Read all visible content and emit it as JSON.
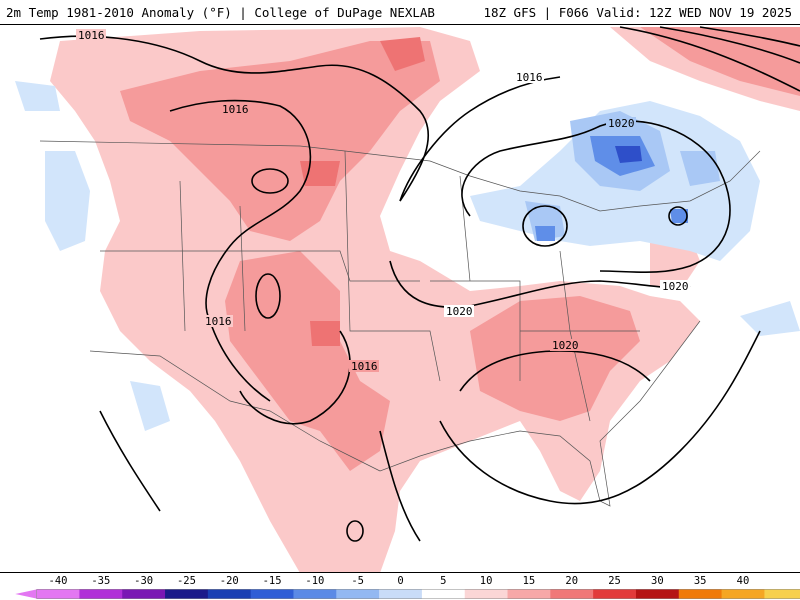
{
  "header": {
    "title_left": "2m Temp 1981-2010 Anomaly (°F) | College of DuPage NEXLAB",
    "title_right": "18Z GFS | F066 Valid: 12Z WED NOV 19 2025"
  },
  "map": {
    "isobar_labels": [
      {
        "id": "l1",
        "text": "1016"
      },
      {
        "id": "l2",
        "text": "1016"
      },
      {
        "id": "l3",
        "text": "1016"
      },
      {
        "id": "l4",
        "text": "1020"
      },
      {
        "id": "l5",
        "text": "1016"
      },
      {
        "id": "l6",
        "text": "1020"
      },
      {
        "id": "l7",
        "text": "1016"
      },
      {
        "id": "l8",
        "text": "1020"
      },
      {
        "id": "l9",
        "text": "1020"
      }
    ],
    "colors": {
      "warm_light": "#fbc9c9",
      "warm_medium": "#f59b9b",
      "warm_strong": "#ee7373",
      "cool_light": "#d2e5fb",
      "cool_medium": "#a9c8f5",
      "cool_strong": "#5f8ee8",
      "cool_deep": "#2e4fc9",
      "border": "#000000"
    }
  },
  "colorbar": {
    "ticks": [
      "-40",
      "-35",
      "-30",
      "-25",
      "-20",
      "-15",
      "-10",
      "-5",
      "0",
      "5",
      "10",
      "15",
      "20",
      "25",
      "30",
      "35",
      "40"
    ],
    "colors": [
      "#e377f2",
      "#b02fd8",
      "#7a17b4",
      "#1b1a8a",
      "#1a3fb3",
      "#2f5ed6",
      "#5b8ae6",
      "#93b8f2",
      "#c9dcf8",
      "#ffffff",
      "#fbd6d6",
      "#f7a8a8",
      "#f07878",
      "#e23b3b",
      "#b51414",
      "#f07a0a",
      "#f5a623",
      "#f7d04c"
    ]
  }
}
